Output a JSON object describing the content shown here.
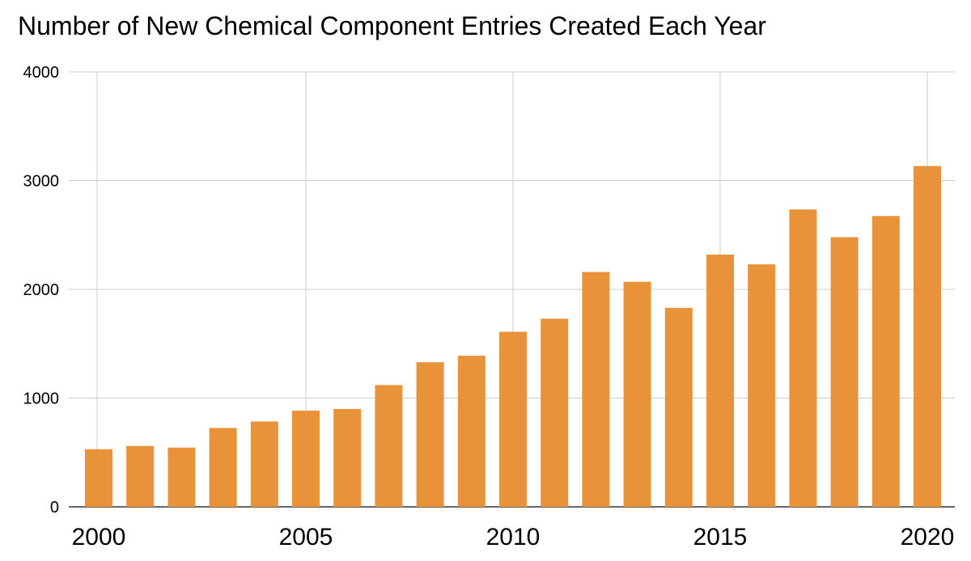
{
  "chart_data": {
    "type": "bar",
    "title": "Number of New Chemical Component Entries Created Each Year",
    "xlabel": "",
    "ylabel": "",
    "x": [
      2000,
      2001,
      2002,
      2003,
      2004,
      2005,
      2006,
      2007,
      2008,
      2009,
      2010,
      2011,
      2012,
      2013,
      2014,
      2015,
      2016,
      2017,
      2018,
      2019,
      2020
    ],
    "values": [
      530,
      560,
      545,
      725,
      785,
      885,
      900,
      1120,
      1330,
      1390,
      1610,
      1730,
      2160,
      2070,
      1830,
      2320,
      2230,
      2735,
      2480,
      2675,
      3135
    ],
    "ylim": [
      0,
      4000
    ],
    "y_ticks": [
      0,
      1000,
      2000,
      3000,
      4000
    ],
    "x_tick_labels": [
      "2000",
      "2005",
      "2010",
      "2015",
      "2020"
    ],
    "x_tick_values": [
      2000,
      2005,
      2010,
      2015,
      2020
    ],
    "bar_color": "#E8923A",
    "grid": true,
    "gridline_color": "#CCCCCC",
    "legend": "none"
  }
}
